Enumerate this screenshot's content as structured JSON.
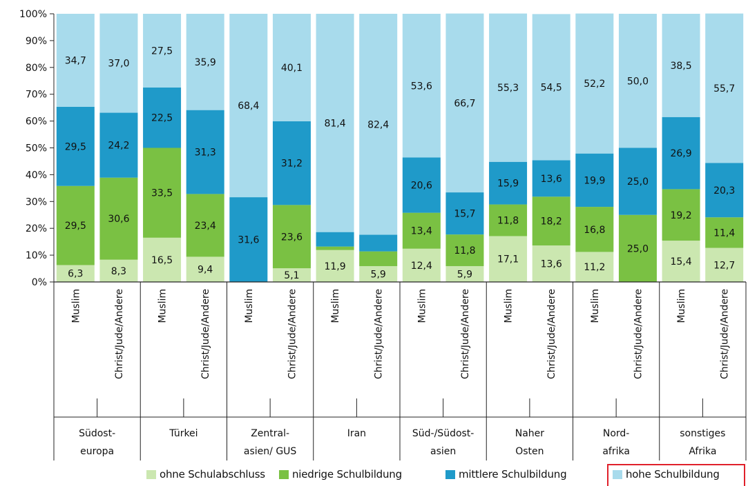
{
  "chart_data": {
    "type": "bar",
    "stacked": true,
    "title": "",
    "ylabel": "",
    "ylim": [
      0,
      100
    ],
    "y_ticks": [
      "0%",
      "10%",
      "20%",
      "30%",
      "40%",
      "50%",
      "60%",
      "70%",
      "80%",
      "90%",
      "100%"
    ],
    "groups": [
      {
        "label": "Südost-\neuropa"
      },
      {
        "label": "Türkei"
      },
      {
        "label": "Zentral-\nasien/ GUS"
      },
      {
        "label": "Iran"
      },
      {
        "label": "Süd-/Südost-\nasien"
      },
      {
        "label": "Naher\nOsten"
      },
      {
        "label": "Nord-\nafrika"
      },
      {
        "label": "sonstiges\nAfrika"
      }
    ],
    "subcategories": [
      "Muslim",
      "Christ/Jude/Andere"
    ],
    "categories": [
      "Südost-europa · Muslim",
      "Südost-europa · Christ/Jude/Andere",
      "Türkei · Muslim",
      "Türkei · Christ/Jude/Andere",
      "Zentral-asien/ GUS · Muslim",
      "Zentral-asien/ GUS · Christ/Jude/Andere",
      "Iran · Muslim",
      "Iran · Christ/Jude/Andere",
      "Süd-/Südost-asien · Muslim",
      "Süd-/Südost-asien · Christ/Jude/Andere",
      "Naher Osten · Muslim",
      "Naher Osten · Christ/Jude/Andere",
      "Nord-afrika · Muslim",
      "Nord-afrika · Christ/Jude/Andere",
      "sonstiges Afrika · Muslim",
      "sonstiges Afrika · Christ/Jude/Andere"
    ],
    "series": [
      {
        "name": "ohne Schulabschluss",
        "color": "#cbe7b0",
        "values": [
          6.3,
          8.3,
          16.5,
          9.4,
          0,
          5.1,
          11.9,
          5.9,
          12.4,
          5.9,
          17.1,
          13.6,
          11.2,
          0,
          15.4,
          12.7
        ],
        "labels": [
          "6,3",
          "8,3",
          "16,5",
          "9,4",
          "",
          "5,1",
          "11,9",
          "5,9",
          "12,4",
          "5,9",
          "17,1",
          "13,6",
          "11,2",
          "",
          "15,4",
          "12,7"
        ]
      },
      {
        "name": "niedrige Schulbildung",
        "color": "#7ac143",
        "values": [
          29.5,
          30.6,
          33.5,
          23.4,
          0,
          23.6,
          1.3,
          5.5,
          13.4,
          11.8,
          11.8,
          18.2,
          16.8,
          25.0,
          19.2,
          11.4
        ],
        "labels": [
          "29,5",
          "30,6",
          "33,5",
          "23,4",
          "",
          "23,6",
          "",
          "",
          "13,4",
          "11,8",
          "11,8",
          "18,2",
          "16,8",
          "25,0",
          "19,2",
          "11,4"
        ]
      },
      {
        "name": "mittlere Schulbildung",
        "color": "#1f9ac9",
        "values": [
          29.5,
          24.2,
          22.5,
          31.3,
          31.6,
          31.2,
          5.4,
          6.2,
          20.6,
          15.7,
          15.9,
          13.6,
          19.9,
          25.0,
          26.9,
          20.3
        ],
        "labels": [
          "29,5",
          "24,2",
          "22,5",
          "31,3",
          "31,6",
          "31,2",
          "",
          "",
          "20,6",
          "15,7",
          "15,9",
          "13,6",
          "19,9",
          "25,0",
          "26,9",
          "20,3"
        ]
      },
      {
        "name": "hohe Schulbildung",
        "color": "#a8dbec",
        "values": [
          34.7,
          37.0,
          27.5,
          35.9,
          68.4,
          40.1,
          81.4,
          82.4,
          53.6,
          66.7,
          55.3,
          54.5,
          52.2,
          50.0,
          38.5,
          55.7
        ],
        "labels": [
          "34,7",
          "37,0",
          "27,5",
          "35,9",
          "68,4",
          "40,1",
          "81,4",
          "82,4",
          "53,6",
          "66,7",
          "55,3",
          "54,5",
          "52,2",
          "50,0",
          "38,5",
          "55,7"
        ]
      }
    ],
    "grid": false,
    "legend_position": "bottom",
    "highlighted_legend_entry": "hohe Schulbildung"
  },
  "colors": {
    "ohne": "#cbe7b0",
    "niedrige": "#7ac143",
    "mittlere": "#1f9ac9",
    "hohe": "#a8dbec",
    "highlight": "#e0202a"
  }
}
